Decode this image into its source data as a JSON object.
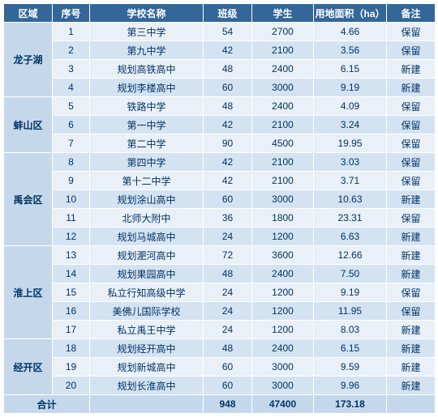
{
  "colors": {
    "header_bg": "#336699",
    "header_fg": "#ffffff",
    "region_bg": "#c5d8eb",
    "region_fg": "#003366",
    "row_odd_bg": "#e9f0f8",
    "row_even_bg": "#d4e3f2",
    "border": "#ffffff"
  },
  "headers": [
    "区域",
    "序号",
    "学校名称",
    "班级",
    "学生",
    "用地面积（ha）",
    "备注"
  ],
  "regions": [
    {
      "name": "龙子湖",
      "rows": [
        {
          "idx": "1",
          "name": "第三中学",
          "class": "54",
          "students": "2700",
          "area": "4.66",
          "note": "保留"
        },
        {
          "idx": "2",
          "name": "第九中学",
          "class": "42",
          "students": "2100",
          "area": "3.56",
          "note": "保留"
        },
        {
          "idx": "3",
          "name": "规划高铁高中",
          "class": "48",
          "students": "2400",
          "area": "6.15",
          "note": "新建"
        },
        {
          "idx": "4",
          "name": "规划李楼高中",
          "class": "60",
          "students": "3000",
          "area": "9.19",
          "note": "新建"
        }
      ]
    },
    {
      "name": "蚌山区",
      "rows": [
        {
          "idx": "5",
          "name": "铁路中学",
          "class": "48",
          "students": "2400",
          "area": "4.09",
          "note": "保留"
        },
        {
          "idx": "6",
          "name": "第一中学",
          "class": "42",
          "students": "2100",
          "area": "3.24",
          "note": "保留"
        },
        {
          "idx": "7",
          "name": "第二中学",
          "class": "90",
          "students": "4500",
          "area": "19.95",
          "note": "保留"
        }
      ]
    },
    {
      "name": "禹会区",
      "rows": [
        {
          "idx": "8",
          "name": "第四中学",
          "class": "42",
          "students": "2100",
          "area": "3.03",
          "note": "保留"
        },
        {
          "idx": "9",
          "name": "第十二中学",
          "class": "42",
          "students": "2100",
          "area": "3.71",
          "note": "保留"
        },
        {
          "idx": "10",
          "name": "规划涂山高中",
          "class": "60",
          "students": "3000",
          "area": "10.63",
          "note": "新建"
        },
        {
          "idx": "11",
          "name": "北师大附中",
          "class": "36",
          "students": "1800",
          "area": "23.31",
          "note": "保留"
        },
        {
          "idx": "12",
          "name": "规划马城高中",
          "class": "24",
          "students": "1200",
          "area": "6.63",
          "note": "新建"
        }
      ]
    },
    {
      "name": "淮上区",
      "rows": [
        {
          "idx": "13",
          "name": "规划淝河高中",
          "class": "72",
          "students": "3600",
          "area": "12.66",
          "note": "新建"
        },
        {
          "idx": "14",
          "name": "规划果园高中",
          "class": "48",
          "students": "2400",
          "area": "7.50",
          "note": "新建"
        },
        {
          "idx": "15",
          "name": "私立行知高级中学",
          "class": "24",
          "students": "1200",
          "area": "9.19",
          "note": "保留"
        },
        {
          "idx": "16",
          "name": "美佛儿国际学校",
          "class": "24",
          "students": "1200",
          "area": "11.95",
          "note": "保留"
        },
        {
          "idx": "17",
          "name": "私立禹王中学",
          "class": "24",
          "students": "1200",
          "area": "8.03",
          "note": "新建"
        }
      ]
    },
    {
      "name": "经开区",
      "rows": [
        {
          "idx": "18",
          "name": "规划经开高中",
          "class": "48",
          "students": "2400",
          "area": "6.15",
          "note": "新建"
        },
        {
          "idx": "19",
          "name": "规划新城高中",
          "class": "60",
          "students": "3000",
          "area": "9.59",
          "note": "新建"
        },
        {
          "idx": "20",
          "name": "规划长淮高中",
          "class": "60",
          "students": "3000",
          "area": "9.96",
          "note": "新建"
        }
      ]
    }
  ],
  "total": {
    "label": "合计",
    "class": "948",
    "students": "47400",
    "area": "173.18",
    "note": ""
  }
}
